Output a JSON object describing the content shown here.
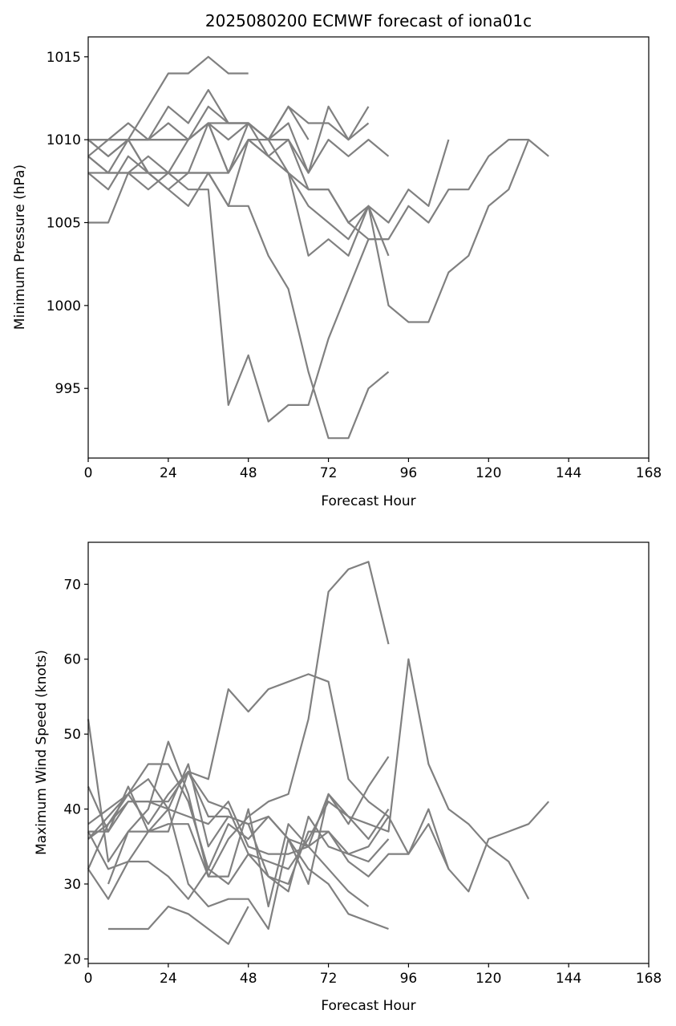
{
  "chart_data": [
    {
      "type": "line",
      "title": "2025080200 ECMWF forecast of iona01c",
      "xlabel": "Forecast Hour",
      "ylabel": "Minimum Pressure (hPa)",
      "xlim": [
        0,
        168
      ],
      "ylim": [
        990.8,
        1016.2
      ],
      "xticks": [
        "0",
        "24",
        "48",
        "72",
        "96",
        "120",
        "144",
        "168"
      ],
      "yticks": [
        "995",
        "1000",
        "1005",
        "1010",
        "1015"
      ],
      "line_color": "#808080",
      "grid": false,
      "series": [
        {
          "x": [
            0,
            6,
            12,
            18,
            24,
            30,
            36,
            42,
            48
          ],
          "y": [
            1010,
            1010,
            1010,
            1012,
            1014,
            1014,
            1015,
            1014,
            1014
          ]
        },
        {
          "x": [
            0,
            6,
            12,
            18,
            24,
            30,
            36,
            42,
            48,
            54,
            60,
            66
          ],
          "y": [
            1010,
            1009,
            1010,
            1010,
            1012,
            1011,
            1013,
            1011,
            1011,
            1010,
            1012,
            1010
          ]
        },
        {
          "x": [
            0,
            6,
            12,
            18,
            24,
            30,
            36,
            42,
            48,
            54,
            60,
            66,
            72,
            78,
            84
          ],
          "y": [
            1010,
            1010,
            1011,
            1010,
            1011,
            1010,
            1012,
            1011,
            1011,
            1010,
            1012,
            1011,
            1011,
            1010,
            1011
          ]
        },
        {
          "x": [
            0,
            6,
            12,
            18,
            24,
            30,
            36,
            42,
            48,
            54,
            60,
            66,
            72,
            78,
            84
          ],
          "y": [
            1010,
            1010,
            1010,
            1010,
            1010,
            1010,
            1011,
            1011,
            1011,
            1010,
            1011,
            1008,
            1012,
            1010,
            1012
          ]
        },
        {
          "x": [
            0,
            6,
            12,
            18,
            24,
            30,
            36,
            42,
            48,
            54,
            60,
            66,
            72,
            78,
            84,
            90
          ],
          "y": [
            1009,
            1010,
            1010,
            1010,
            1010,
            1010,
            1011,
            1010,
            1011,
            1010,
            1010,
            1008,
            1010,
            1009,
            1010,
            1009
          ]
        },
        {
          "x": [
            0,
            6,
            12,
            18,
            24,
            30,
            36,
            42,
            48,
            54,
            60,
            66,
            72,
            78,
            84,
            90,
            96,
            102,
            108
          ],
          "y": [
            1009,
            1008,
            1010,
            1008,
            1008,
            1010,
            1011,
            1008,
            1010,
            1010,
            1008,
            1003,
            1004,
            1003,
            1006,
            1005,
            1007,
            1006,
            1010
          ]
        },
        {
          "x": [
            0,
            6,
            12,
            18,
            24,
            30,
            36,
            42,
            48,
            54,
            60,
            66,
            72,
            78,
            84,
            90
          ],
          "y": [
            1009,
            1008,
            1008,
            1009,
            1008,
            1008,
            1008,
            1008,
            1010,
            1009,
            1010,
            1007,
            1007,
            1005,
            1004,
            1004
          ]
        },
        {
          "x": [
            0,
            6,
            12,
            18,
            24,
            30,
            36,
            42,
            48,
            54,
            60,
            66,
            72,
            78,
            84,
            90
          ],
          "y": [
            1008,
            1007,
            1009,
            1008,
            1007,
            1008,
            1008,
            1006,
            1006,
            1003,
            1001,
            996,
            992,
            992,
            995,
            996
          ]
        },
        {
          "x": [
            0,
            6,
            12,
            18,
            24,
            30,
            36,
            42,
            48,
            54,
            60,
            66,
            72,
            78,
            84,
            90,
            96,
            102,
            108,
            114,
            120,
            126,
            132,
            138
          ],
          "y": [
            1008,
            1008,
            1008,
            1007,
            1008,
            1007,
            1007,
            994,
            997,
            993,
            994,
            994,
            998,
            1001,
            1004,
            1004,
            1006,
            1005,
            1007,
            1007,
            1009,
            1010,
            1010,
            1009
          ]
        },
        {
          "x": [
            0,
            6,
            12,
            18,
            24,
            30,
            36,
            42,
            48,
            54,
            60,
            66,
            72,
            78,
            84,
            90
          ],
          "y": [
            1010,
            1009,
            1010,
            1008,
            1007,
            1006,
            1008,
            1006,
            1010,
            1009,
            1008,
            1006,
            1005,
            1004,
            1006,
            1003
          ]
        },
        {
          "x": [
            0,
            6,
            12,
            18,
            24,
            30,
            36,
            42,
            48,
            54,
            60,
            66,
            72,
            78,
            84,
            90,
            96,
            102,
            108,
            114,
            120,
            126,
            132
          ],
          "y": [
            1005,
            1005,
            1008,
            1008,
            1008,
            1008,
            1011,
            1008,
            1011,
            1009,
            1008,
            1007,
            1007,
            1005,
            1006,
            1000,
            999,
            999,
            1002,
            1003,
            1006,
            1007,
            1010
          ]
        }
      ]
    },
    {
      "type": "line",
      "title": "",
      "xlabel": "Forecast Hour",
      "ylabel": "Maximum Wind Speed (knots)",
      "xlim": [
        0,
        168
      ],
      "ylim": [
        19.4,
        75.6
      ],
      "xticks": [
        "0",
        "24",
        "48",
        "72",
        "96",
        "120",
        "144",
        "168"
      ],
      "yticks": [
        "20",
        "30",
        "40",
        "50",
        "60",
        "70"
      ],
      "line_color": "#808080",
      "grid": false,
      "series": [
        {
          "x": [
            0,
            6,
            12,
            18,
            24,
            30,
            36,
            42,
            48,
            54,
            60,
            66,
            72,
            78,
            84,
            90
          ],
          "y": [
            52,
            33,
            37,
            37,
            37,
            45,
            44,
            56,
            53,
            56,
            57,
            58,
            57,
            44,
            41,
            39
          ]
        },
        {
          "x": [
            0,
            6,
            12,
            18,
            24,
            30,
            36,
            42,
            48,
            54,
            60,
            66,
            72,
            78,
            84,
            90
          ],
          "y": [
            43,
            37,
            43,
            37,
            38,
            38,
            31,
            36,
            39,
            41,
            42,
            52,
            69,
            72,
            73,
            62
          ]
        },
        {
          "x": [
            0,
            6,
            12,
            18,
            24,
            30,
            36,
            42,
            48,
            54,
            60,
            66,
            72,
            78,
            84,
            90
          ],
          "y": [
            38,
            40,
            42,
            46,
            46,
            41,
            32,
            38,
            36,
            39,
            36,
            30,
            42,
            38,
            43,
            47
          ]
        },
        {
          "x": [
            0,
            6,
            12,
            18,
            24,
            30,
            36,
            42,
            48,
            54,
            60,
            66,
            72,
            78,
            84,
            90,
            96,
            102,
            108,
            114,
            120,
            126,
            132
          ],
          "y": [
            37,
            37,
            41,
            41,
            41,
            45,
            39,
            39,
            38,
            39,
            36,
            35,
            42,
            39,
            38,
            37,
            60,
            46,
            40,
            38,
            35,
            33,
            28
          ]
        },
        {
          "x": [
            0,
            6,
            12,
            18,
            24,
            30,
            36,
            42,
            48,
            54,
            60,
            66,
            72,
            78,
            84,
            90
          ],
          "y": [
            36,
            39,
            42,
            44,
            40,
            46,
            35,
            39,
            38,
            31,
            29,
            39,
            35,
            34,
            33,
            36
          ]
        },
        {
          "x": [
            0,
            6,
            12,
            18,
            24,
            30,
            36,
            42,
            48,
            54,
            60,
            66,
            72,
            78,
            84,
            90
          ],
          "y": [
            36,
            38,
            42,
            38,
            42,
            45,
            41,
            40,
            34,
            33,
            32,
            36,
            41,
            39,
            36,
            40
          ]
        },
        {
          "x": [
            6,
            12,
            18,
            24,
            30,
            36,
            42,
            48,
            54,
            60,
            66,
            72,
            78,
            84
          ],
          "y": [
            30,
            37,
            40,
            49,
            42,
            31,
            31,
            40,
            27,
            38,
            35,
            32,
            29,
            27
          ]
        },
        {
          "x": [
            0,
            6,
            12,
            18,
            24,
            30,
            36,
            42,
            48,
            54,
            60,
            66,
            72,
            78,
            84,
            90,
            96,
            102,
            108,
            114,
            120,
            126,
            132,
            138
          ],
          "y": [
            32,
            38,
            41,
            41,
            40,
            39,
            38,
            41,
            35,
            34,
            34,
            35,
            37,
            34,
            35,
            39,
            34,
            38,
            32,
            29,
            36,
            37,
            38,
            41
          ]
        },
        {
          "x": [
            0,
            6,
            12,
            18,
            24,
            30,
            36,
            42,
            48,
            54,
            60,
            66,
            72,
            78,
            84,
            90,
            96,
            102,
            108
          ],
          "y": [
            32,
            28,
            33,
            33,
            31,
            28,
            32,
            30,
            34,
            31,
            30,
            37,
            37,
            33,
            31,
            34,
            34,
            40,
            32
          ]
        },
        {
          "x": [
            0,
            6,
            12,
            18,
            24,
            30,
            36,
            42,
            48,
            54,
            60,
            66,
            72,
            78,
            84,
            90
          ],
          "y": [
            37,
            32,
            33,
            37,
            40,
            30,
            27,
            28,
            28,
            24,
            36,
            32,
            30,
            26,
            25,
            24
          ]
        },
        {
          "x": [
            6,
            12,
            18,
            24,
            30,
            36,
            42,
            48
          ],
          "y": [
            24,
            24,
            24,
            27,
            26,
            24,
            22,
            27
          ]
        }
      ]
    }
  ]
}
